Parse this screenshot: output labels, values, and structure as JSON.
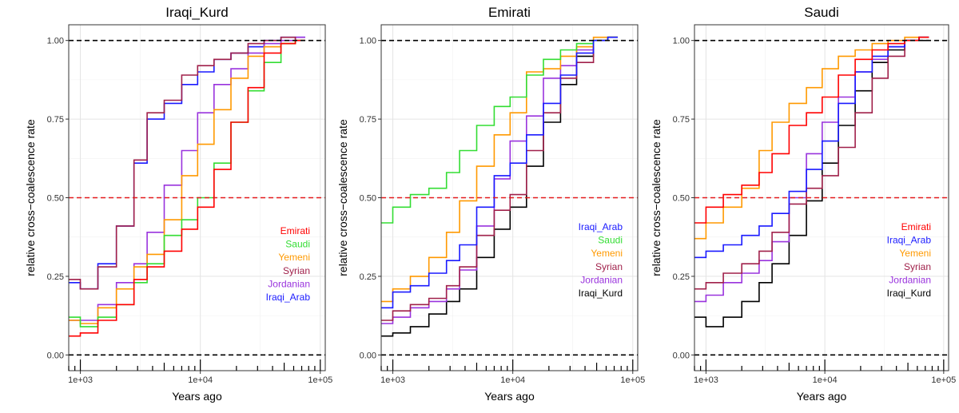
{
  "chart_data": [
    {
      "type": "line",
      "step": true,
      "title": "Iraqi_Kurd",
      "xlabel": "Years ago",
      "ylabel": "relative cross−coalescence rate",
      "xscale": "log10",
      "xlim": [
        800,
        110000
      ],
      "ylim": [
        -0.05,
        1.05
      ],
      "xticks": [
        1000,
        10000,
        100000
      ],
      "xtick_labels": [
        "1e+03",
        "1e+04",
        "1e+05"
      ],
      "yticks": [
        0.0,
        0.25,
        0.5,
        0.75,
        1.0
      ],
      "ytick_labels": [
        "0.00",
        "0.25",
        "0.50",
        "0.75",
        "1.00"
      ],
      "reference_lines": [
        {
          "y": 1.0,
          "color": "#000000",
          "style": "dashed"
        },
        {
          "y": 0.5,
          "color": "#e41a1c",
          "style": "dashed"
        },
        {
          "y": 0.0,
          "color": "#000000",
          "style": "dashed"
        }
      ],
      "legend": [
        {
          "name": "Emirati",
          "color": "#ff0000"
        },
        {
          "name": "Saudi",
          "color": "#33dd33"
        },
        {
          "name": "Yemeni",
          "color": "#ff9900"
        },
        {
          "name": "Syrian",
          "color": "#a0204a"
        },
        {
          "name": "Jordanian",
          "color": "#9933dd"
        },
        {
          "name": "Iraqi_Arab",
          "color": "#1a1aff"
        }
      ],
      "legend_position": "right-center",
      "x_edges": [
        800,
        1000,
        1400,
        2000,
        2800,
        3600,
        5000,
        7000,
        9500,
        13000,
        18000,
        25000,
        34000,
        47000,
        62000,
        75000
      ],
      "series": [
        {
          "name": "Emirati",
          "color": "#ff0000",
          "values": [
            0.06,
            0.07,
            0.11,
            0.16,
            0.24,
            0.28,
            0.33,
            0.4,
            0.47,
            0.59,
            0.74,
            0.85,
            0.96,
            0.99,
            1.0
          ]
        },
        {
          "name": "Saudi",
          "color": "#33dd33",
          "values": [
            0.12,
            0.09,
            0.12,
            0.16,
            0.23,
            0.29,
            0.38,
            0.43,
            0.5,
            0.61,
            0.74,
            0.84,
            0.93,
            0.99,
            1.0
          ]
        },
        {
          "name": "Yemeni",
          "color": "#ff9900",
          "values": [
            0.11,
            0.1,
            0.15,
            0.21,
            0.28,
            0.32,
            0.43,
            0.57,
            0.67,
            0.78,
            0.88,
            0.95,
            0.98,
            0.99,
            1.0
          ]
        },
        {
          "name": "Syrian",
          "color": "#a0204a",
          "values": [
            0.24,
            0.21,
            0.28,
            0.41,
            0.62,
            0.77,
            0.81,
            0.89,
            0.92,
            0.94,
            0.96,
            0.99,
            1.0,
            1.01,
            1.0
          ]
        },
        {
          "name": "Jordanian",
          "color": "#9933dd",
          "values": [
            0.11,
            0.11,
            0.16,
            0.23,
            0.29,
            0.39,
            0.54,
            0.65,
            0.77,
            0.86,
            0.91,
            0.96,
            0.99,
            1.0,
            1.01
          ]
        },
        {
          "name": "Iraqi_Arab",
          "color": "#1a1aff",
          "values": [
            0.23,
            0.21,
            0.29,
            0.41,
            0.61,
            0.75,
            0.8,
            0.86,
            0.9,
            0.94,
            0.96,
            0.98,
            1.0,
            1.01,
            1.01
          ]
        }
      ]
    },
    {
      "type": "line",
      "step": true,
      "title": "Emirati",
      "xlabel": "Years ago",
      "ylabel": "relative cross−coalescence rate",
      "xscale": "log10",
      "xlim": [
        800,
        110000
      ],
      "ylim": [
        -0.05,
        1.05
      ],
      "xticks": [
        1000,
        10000,
        100000
      ],
      "xtick_labels": [
        "1e+03",
        "1e+04",
        "1e+05"
      ],
      "yticks": [
        0.0,
        0.25,
        0.5,
        0.75,
        1.0
      ],
      "ytick_labels": [
        "0.00",
        "0.25",
        "0.50",
        "0.75",
        "1.00"
      ],
      "reference_lines": [
        {
          "y": 1.0,
          "color": "#000000",
          "style": "dashed"
        },
        {
          "y": 0.5,
          "color": "#e41a1c",
          "style": "dashed"
        },
        {
          "y": 0.0,
          "color": "#000000",
          "style": "dashed"
        }
      ],
      "legend": [
        {
          "name": "Iraqi_Arab",
          "color": "#1a1aff"
        },
        {
          "name": "Saudi",
          "color": "#33dd33"
        },
        {
          "name": "Yemeni",
          "color": "#ff9900"
        },
        {
          "name": "Syrian",
          "color": "#a0204a"
        },
        {
          "name": "Jordanian",
          "color": "#9933dd"
        },
        {
          "name": "Iraqi_Kurd",
          "color": "#000000"
        }
      ],
      "legend_position": "right-center",
      "x_edges": [
        800,
        1000,
        1400,
        2000,
        2800,
        3600,
        5000,
        7000,
        9500,
        13000,
        18000,
        25000,
        34000,
        47000,
        62000,
        75000
      ],
      "series": [
        {
          "name": "Iraqi_Arab",
          "color": "#1a1aff",
          "values": [
            0.15,
            0.2,
            0.22,
            0.26,
            0.3,
            0.35,
            0.47,
            0.57,
            0.61,
            0.7,
            0.8,
            0.89,
            0.96,
            1.0,
            1.01
          ]
        },
        {
          "name": "Saudi",
          "color": "#33dd33",
          "values": [
            0.42,
            0.47,
            0.51,
            0.53,
            0.58,
            0.65,
            0.73,
            0.79,
            0.82,
            0.89,
            0.94,
            0.97,
            0.99,
            1.0,
            1.01
          ]
        },
        {
          "name": "Yemeni",
          "color": "#ff9900",
          "values": [
            0.17,
            0.21,
            0.25,
            0.31,
            0.39,
            0.49,
            0.6,
            0.7,
            0.77,
            0.9,
            0.91,
            0.95,
            0.98,
            1.01,
            1.01
          ]
        },
        {
          "name": "Syrian",
          "color": "#a0204a",
          "values": [
            0.11,
            0.14,
            0.16,
            0.18,
            0.22,
            0.28,
            0.38,
            0.46,
            0.51,
            0.65,
            0.77,
            0.88,
            0.93,
            1.0,
            1.01
          ]
        },
        {
          "name": "Jordanian",
          "color": "#9933dd",
          "values": [
            0.1,
            0.12,
            0.15,
            0.17,
            0.21,
            0.27,
            0.41,
            0.56,
            0.68,
            0.76,
            0.88,
            0.92,
            0.97,
            1.0,
            1.01
          ]
        },
        {
          "name": "Iraqi_Kurd",
          "color": "#000000",
          "values": [
            0.06,
            0.07,
            0.09,
            0.13,
            0.17,
            0.21,
            0.31,
            0.4,
            0.47,
            0.6,
            0.74,
            0.86,
            0.95,
            1.0,
            1.01
          ]
        }
      ]
    },
    {
      "type": "line",
      "step": true,
      "title": "Saudi",
      "xlabel": "Years ago",
      "ylabel": "relative cross−coalescence rate",
      "xscale": "log10",
      "xlim": [
        800,
        110000
      ],
      "ylim": [
        -0.05,
        1.05
      ],
      "xticks": [
        1000,
        10000,
        100000
      ],
      "xtick_labels": [
        "1e+03",
        "1e+04",
        "1e+05"
      ],
      "yticks": [
        0.0,
        0.25,
        0.5,
        0.75,
        1.0
      ],
      "ytick_labels": [
        "0.00",
        "0.25",
        "0.50",
        "0.75",
        "1.00"
      ],
      "reference_lines": [
        {
          "y": 1.0,
          "color": "#000000",
          "style": "dashed"
        },
        {
          "y": 0.5,
          "color": "#e41a1c",
          "style": "dashed"
        },
        {
          "y": 0.0,
          "color": "#000000",
          "style": "dashed"
        }
      ],
      "legend": [
        {
          "name": "Emirati",
          "color": "#ff0000"
        },
        {
          "name": "Iraqi_Arab",
          "color": "#1a1aff"
        },
        {
          "name": "Yemeni",
          "color": "#ff9900"
        },
        {
          "name": "Syrian",
          "color": "#a0204a"
        },
        {
          "name": "Jordanian",
          "color": "#9933dd"
        },
        {
          "name": "Iraqi_Kurd",
          "color": "#000000"
        }
      ],
      "legend_position": "right-center",
      "x_edges": [
        800,
        1000,
        1400,
        2000,
        2800,
        3600,
        5000,
        7000,
        9500,
        13000,
        18000,
        25000,
        34000,
        47000,
        62000,
        75000
      ],
      "series": [
        {
          "name": "Emirati",
          "color": "#ff0000",
          "values": [
            0.42,
            0.47,
            0.51,
            0.54,
            0.58,
            0.64,
            0.73,
            0.77,
            0.82,
            0.89,
            0.94,
            0.97,
            0.99,
            1.0,
            1.01
          ]
        },
        {
          "name": "Iraqi_Arab",
          "color": "#1a1aff",
          "values": [
            0.31,
            0.33,
            0.35,
            0.38,
            0.41,
            0.45,
            0.52,
            0.59,
            0.68,
            0.8,
            0.9,
            0.95,
            0.98,
            1.0,
            1.01
          ]
        },
        {
          "name": "Yemeni",
          "color": "#ff9900",
          "values": [
            0.37,
            0.42,
            0.47,
            0.53,
            0.65,
            0.74,
            0.8,
            0.85,
            0.91,
            0.95,
            0.97,
            0.99,
            1.0,
            1.01,
            1.01
          ]
        },
        {
          "name": "Syrian",
          "color": "#a0204a",
          "values": [
            0.21,
            0.23,
            0.26,
            0.29,
            0.33,
            0.39,
            0.48,
            0.53,
            0.57,
            0.66,
            0.77,
            0.88,
            0.95,
            1.0,
            1.01
          ]
        },
        {
          "name": "Jordanian",
          "color": "#9933dd",
          "values": [
            0.17,
            0.19,
            0.23,
            0.26,
            0.3,
            0.36,
            0.5,
            0.64,
            0.74,
            0.82,
            0.9,
            0.94,
            0.98,
            1.0,
            1.01
          ]
        },
        {
          "name": "Iraqi_Kurd",
          "color": "#000000",
          "values": [
            0.12,
            0.09,
            0.12,
            0.17,
            0.23,
            0.29,
            0.38,
            0.49,
            0.61,
            0.73,
            0.84,
            0.93,
            0.97,
            1.0,
            1.0
          ]
        }
      ]
    }
  ]
}
